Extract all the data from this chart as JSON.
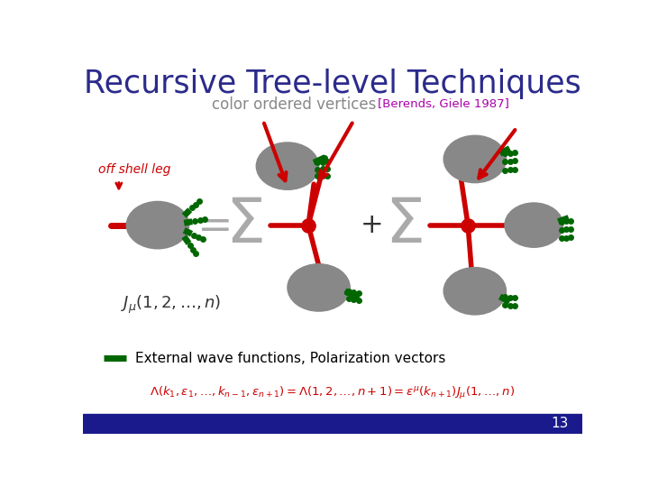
{
  "title": "Recursive Tree-level Techniques",
  "subtitle": "color ordered vertices",
  "reference": "[Berends, Giele 1987]",
  "off_shell_label": "off shell leg",
  "j_label": "$J_{\\mu}(1,2,\\ldots,n)$",
  "legend_label": "External wave functions, Polarization vectors",
  "formula": "$\\Lambda(k_1,\\varepsilon_1,\\ldots,k_{n-1},\\varepsilon_{n+1}) = \\Lambda(1,2,\\ldots,n+1) = \\varepsilon^{\\mu}(k_{n+1})J_{\\mu}(1,\\ldots,n)$",
  "page_num": "13",
  "bg_color": "#ffffff",
  "title_color": "#2b2b8c",
  "subtitle_color": "#888888",
  "ref_color": "#aa00aa",
  "off_shell_color": "#cc0000",
  "blob_color": "#888888",
  "red_line_color": "#cc0000",
  "green_color": "#006600",
  "sigma_color": "#aaaaaa",
  "formula_color": "#cc0000",
  "footer_color": "#1a1a8c",
  "plus_color": "#333333",
  "jmu_color": "#333333"
}
